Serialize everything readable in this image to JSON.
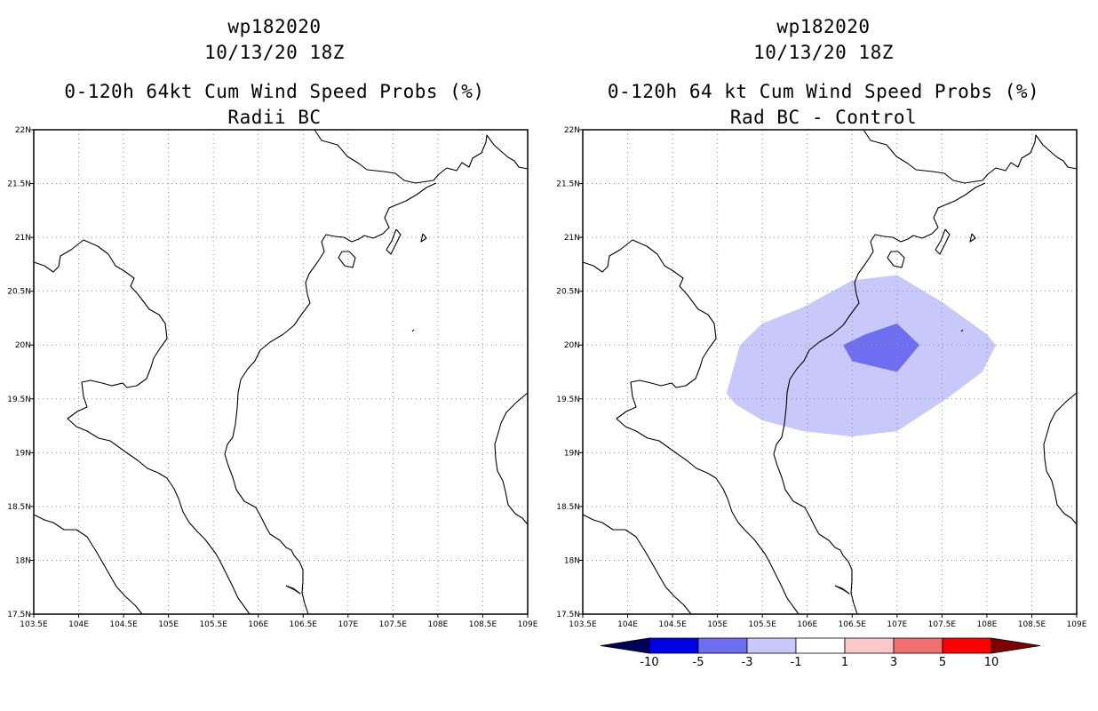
{
  "left": {
    "storm_id": "wp182020",
    "datetime": "10/13/20 18Z",
    "title": "0-120h 64kt Cum Wind Speed Probs (%)",
    "subtitle": "Radii BC"
  },
  "right": {
    "storm_id": "wp182020",
    "datetime": "10/13/20 18Z",
    "title": "0-120h 64 kt Cum Wind Speed Probs (%)",
    "subtitle": "Rad BC - Control"
  },
  "map": {
    "lon_range": [
      103.5,
      109
    ],
    "lat_range": [
      17.5,
      22
    ],
    "lon_ticks": [
      "103.5E",
      "104E",
      "104.5E",
      "105E",
      "105.5E",
      "106E",
      "106.5E",
      "107E",
      "107.5E",
      "108E",
      "108.5E",
      "109E"
    ],
    "lat_ticks": [
      "22N",
      "21.5N",
      "21N",
      "20.5N",
      "20N",
      "19.5N",
      "19N",
      "18.5N",
      "18N",
      "17.5N"
    ]
  },
  "colorbar": {
    "labels": [
      "-10",
      "-5",
      "-3",
      "-1",
      "1",
      "3",
      "5",
      "10"
    ],
    "colors": [
      "#00005a",
      "#0000e6",
      "#6e6ef0",
      "#c8c8fa",
      "#ffffff",
      "#fac8c8",
      "#f07070",
      "#ff0000",
      "#800000"
    ]
  },
  "contours": {
    "light_color": "#c8c8fa",
    "dark_color": "#6e6ef0",
    "light_region": [
      [
        105.1,
        19.55
      ],
      [
        105.25,
        20.0
      ],
      [
        105.5,
        20.2
      ],
      [
        105.95,
        20.35
      ],
      [
        106.5,
        20.6
      ],
      [
        107.0,
        20.65
      ],
      [
        107.5,
        20.4
      ],
      [
        108.0,
        20.1
      ],
      [
        108.1,
        20.0
      ],
      [
        107.95,
        19.75
      ],
      [
        107.55,
        19.5
      ],
      [
        107.0,
        19.2
      ],
      [
        106.5,
        19.15
      ],
      [
        105.95,
        19.2
      ],
      [
        105.5,
        19.3
      ],
      [
        105.2,
        19.45
      ]
    ],
    "dark_region": [
      [
        106.4,
        20.0
      ],
      [
        106.65,
        20.1
      ],
      [
        107.0,
        20.2
      ],
      [
        107.25,
        20.0
      ],
      [
        107.0,
        19.75
      ],
      [
        106.5,
        19.85
      ]
    ]
  }
}
